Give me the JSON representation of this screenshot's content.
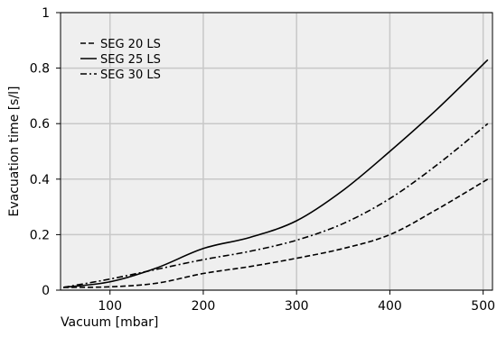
{
  "chart_data": {
    "type": "line",
    "title": "",
    "xlabel": "Vacuum [mbar]",
    "ylabel": "Evacuation time [s/l]",
    "xlim": [
      47,
      510
    ],
    "ylim": [
      0,
      1
    ],
    "x_ticks": [
      100,
      200,
      300,
      400,
      500
    ],
    "y_ticks": [
      0,
      0.2,
      0.4,
      0.6,
      0.8,
      1
    ],
    "y_tick_labels": [
      "0",
      "0.2",
      "0.4",
      "0.6",
      "0.8",
      "1"
    ],
    "grid": true,
    "legend_position": "top-left",
    "series": [
      {
        "name": "SEG 20 LS",
        "dash": "dashed",
        "x": [
          50,
          100,
          150,
          200,
          250,
          300,
          350,
          400,
          450,
          505
        ],
        "y": [
          0.01,
          0.012,
          0.025,
          0.06,
          0.085,
          0.115,
          0.15,
          0.2,
          0.29,
          0.4
        ]
      },
      {
        "name": "SEG 25 LS",
        "dash": "solid",
        "x": [
          50,
          100,
          150,
          200,
          250,
          300,
          350,
          400,
          450,
          505
        ],
        "y": [
          0.01,
          0.03,
          0.08,
          0.15,
          0.19,
          0.25,
          0.36,
          0.5,
          0.65,
          0.83
        ]
      },
      {
        "name": "SEG 30 LS",
        "dash": "dashdot",
        "x": [
          50,
          100,
          150,
          200,
          250,
          300,
          350,
          400,
          450,
          505
        ],
        "y": [
          0.01,
          0.04,
          0.075,
          0.11,
          0.14,
          0.18,
          0.24,
          0.33,
          0.45,
          0.6
        ]
      }
    ]
  }
}
